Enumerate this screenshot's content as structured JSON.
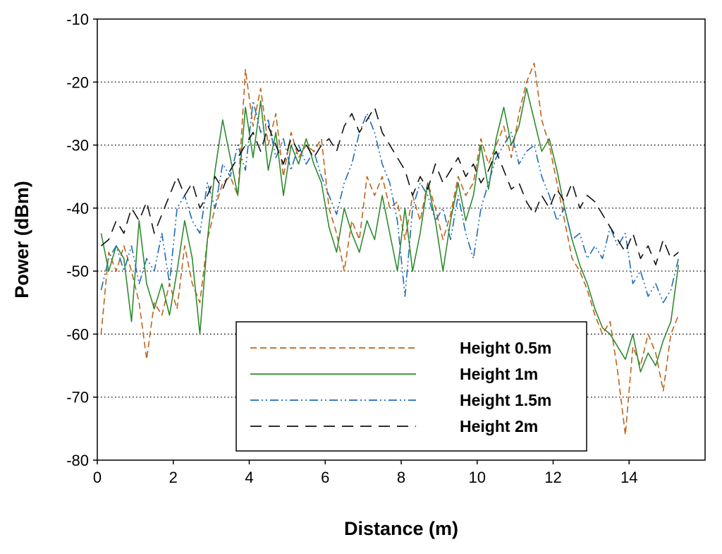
{
  "chart_data": {
    "type": "line",
    "title": "",
    "xlabel": "Distance (m)",
    "ylabel": "Power (dBm)",
    "xlim": [
      0,
      16
    ],
    "ylim": [
      -80,
      -10
    ],
    "xticks": [
      0,
      2,
      4,
      6,
      8,
      10,
      12,
      14
    ],
    "yticks": [
      -80,
      -70,
      -60,
      -50,
      -40,
      -30,
      -20,
      -10
    ],
    "grid": "horizontal-dotted",
    "legend_position": "bottom-center",
    "series": [
      {
        "name": "Height 0.5m",
        "color": "#c0631a",
        "style": "dashed",
        "x": [
          0.1,
          0.3,
          0.5,
          0.7,
          0.9,
          1.1,
          1.3,
          1.5,
          1.7,
          1.9,
          2.1,
          2.3,
          2.5,
          2.7,
          2.9,
          3.1,
          3.3,
          3.5,
          3.7,
          3.9,
          4.1,
          4.3,
          4.5,
          4.7,
          4.9,
          5.1,
          5.3,
          5.5,
          5.7,
          5.9,
          6.1,
          6.3,
          6.5,
          6.7,
          6.9,
          7.1,
          7.3,
          7.5,
          7.7,
          7.9,
          8.1,
          8.3,
          8.5,
          8.7,
          8.9,
          9.1,
          9.3,
          9.5,
          9.7,
          9.9,
          10.1,
          10.3,
          10.5,
          10.7,
          10.9,
          11.1,
          11.3,
          11.5,
          11.7,
          11.9,
          12.1,
          12.3,
          12.5,
          12.7,
          12.9,
          13.1,
          13.3,
          13.5,
          13.7,
          13.9,
          14.1,
          14.3,
          14.5,
          14.7,
          14.9,
          15.1,
          15.3
        ],
        "values": [
          -60,
          -47,
          -50,
          -46,
          -50,
          -55,
          -64,
          -55,
          -57,
          -52,
          -56,
          -46,
          -52,
          -55,
          -45,
          -40,
          -36,
          -35,
          -38,
          -18,
          -27,
          -21,
          -30,
          -25,
          -35,
          -28,
          -32,
          -30,
          -31,
          -29,
          -40,
          -44,
          -50,
          -42,
          -45,
          -35,
          -38,
          -35,
          -40,
          -39,
          -45,
          -38,
          -42,
          -36,
          -40,
          -45,
          -41,
          -35,
          -38,
          -36,
          -29,
          -33,
          -30,
          -27,
          -32,
          -25,
          -20,
          -17,
          -26,
          -30,
          -36,
          -42,
          -48,
          -50,
          -53,
          -57,
          -60,
          -58,
          -66,
          -76,
          -62,
          -65,
          -60,
          -63,
          -69,
          -60,
          -57
        ]
      },
      {
        "name": "Height 1m",
        "color": "#2e8b2e",
        "style": "solid",
        "x": [
          0.1,
          0.3,
          0.5,
          0.7,
          0.9,
          1.1,
          1.3,
          1.5,
          1.7,
          1.9,
          2.1,
          2.3,
          2.5,
          2.7,
          2.9,
          3.1,
          3.3,
          3.5,
          3.7,
          3.9,
          4.1,
          4.3,
          4.5,
          4.7,
          4.9,
          5.1,
          5.3,
          5.5,
          5.7,
          5.9,
          6.1,
          6.3,
          6.5,
          6.7,
          6.9,
          7.1,
          7.3,
          7.5,
          7.7,
          7.9,
          8.1,
          8.3,
          8.5,
          8.7,
          8.9,
          9.1,
          9.3,
          9.5,
          9.7,
          9.9,
          10.1,
          10.3,
          10.5,
          10.7,
          10.9,
          11.1,
          11.3,
          11.5,
          11.7,
          11.9,
          12.1,
          12.3,
          12.5,
          12.7,
          12.9,
          13.1,
          13.3,
          13.5,
          13.7,
          13.9,
          14.1,
          14.3,
          14.5,
          14.7,
          14.9,
          15.1,
          15.3
        ],
        "values": [
          -44,
          -50,
          -46,
          -48,
          -58,
          -42,
          -52,
          -56,
          -52,
          -57,
          -50,
          -42,
          -48,
          -60,
          -45,
          -34,
          -26,
          -32,
          -38,
          -24,
          -32,
          -23,
          -34,
          -28,
          -38,
          -30,
          -33,
          -29,
          -33,
          -36,
          -43,
          -47,
          -40,
          -44,
          -47,
          -42,
          -45,
          -38,
          -44,
          -50,
          -40,
          -50,
          -44,
          -36,
          -42,
          -50,
          -42,
          -36,
          -42,
          -38,
          -30,
          -37,
          -29,
          -24,
          -30,
          -27,
          -21,
          -26,
          -31,
          -29,
          -34,
          -40,
          -45,
          -49,
          -52,
          -56,
          -59,
          -60,
          -62,
          -64,
          -60,
          -66,
          -63,
          -65,
          -61,
          -58,
          -49
        ]
      },
      {
        "name": "Height 1.5m",
        "color": "#1e6bb8",
        "style": "dash-dot-dot",
        "x": [
          0.1,
          0.3,
          0.5,
          0.7,
          0.9,
          1.1,
          1.3,
          1.5,
          1.7,
          1.9,
          2.1,
          2.3,
          2.5,
          2.7,
          2.9,
          3.1,
          3.3,
          3.5,
          3.7,
          3.9,
          4.1,
          4.3,
          4.5,
          4.7,
          4.9,
          5.1,
          5.3,
          5.5,
          5.7,
          5.9,
          6.1,
          6.3,
          6.5,
          6.7,
          6.9,
          7.1,
          7.3,
          7.5,
          7.7,
          7.9,
          8.1,
          8.3,
          8.5,
          8.7,
          8.9,
          9.1,
          9.3,
          9.5,
          9.7,
          9.9,
          10.1,
          10.3,
          10.5,
          10.7,
          10.9,
          11.1,
          11.3,
          11.5,
          11.7,
          11.9,
          12.1,
          12.3,
          12.5,
          12.7,
          12.9,
          13.1,
          13.3,
          13.5,
          13.7,
          13.9,
          14.1,
          14.3,
          14.5,
          14.7,
          14.9,
          15.1,
          15.3
        ],
        "values": [
          -53,
          -48,
          -46,
          -50,
          -46,
          -52,
          -48,
          -50,
          -44,
          -52,
          -40,
          -38,
          -42,
          -44,
          -36,
          -40,
          -33,
          -35,
          -30,
          -34,
          -23,
          -28,
          -26,
          -32,
          -29,
          -34,
          -30,
          -33,
          -31,
          -35,
          -38,
          -41,
          -36,
          -33,
          -28,
          -25,
          -28,
          -33,
          -36,
          -42,
          -54,
          -40,
          -36,
          -38,
          -42,
          -40,
          -45,
          -38,
          -44,
          -48,
          -40,
          -36,
          -32,
          -30,
          -28,
          -33,
          -31,
          -30,
          -35,
          -38,
          -42,
          -40,
          -45,
          -44,
          -48,
          -46,
          -48,
          -43,
          -46,
          -44,
          -52,
          -50,
          -54,
          -52,
          -55,
          -53,
          -48
        ]
      },
      {
        "name": "Height 2m",
        "color": "#111111",
        "style": "long-dash",
        "x": [
          0.1,
          0.3,
          0.5,
          0.7,
          0.9,
          1.1,
          1.3,
          1.5,
          1.7,
          1.9,
          2.1,
          2.3,
          2.5,
          2.7,
          2.9,
          3.1,
          3.3,
          3.5,
          3.7,
          3.9,
          4.1,
          4.3,
          4.5,
          4.7,
          4.9,
          5.1,
          5.3,
          5.5,
          5.7,
          5.9,
          6.1,
          6.3,
          6.5,
          6.7,
          6.9,
          7.1,
          7.3,
          7.5,
          7.7,
          7.9,
          8.1,
          8.3,
          8.5,
          8.7,
          8.9,
          9.1,
          9.3,
          9.5,
          9.7,
          9.9,
          10.1,
          10.3,
          10.5,
          10.7,
          10.9,
          11.1,
          11.3,
          11.5,
          11.7,
          11.9,
          12.1,
          12.3,
          12.5,
          12.7,
          12.9,
          13.1,
          13.3,
          13.5,
          13.7,
          13.9,
          14.1,
          14.3,
          14.5,
          14.7,
          14.9,
          15.1,
          15.3
        ],
        "values": [
          -46,
          -45,
          -42,
          -44,
          -40,
          -42,
          -39,
          -44,
          -41,
          -38,
          -35,
          -38,
          -36,
          -40,
          -38,
          -35,
          -37,
          -34,
          -32,
          -30,
          -28,
          -31,
          -27,
          -30,
          -33,
          -29,
          -31,
          -30,
          -32,
          -30,
          -29,
          -31,
          -27,
          -25,
          -28,
          -26,
          -24,
          -28,
          -30,
          -32,
          -34,
          -38,
          -35,
          -37,
          -33,
          -36,
          -34,
          -32,
          -35,
          -33,
          -36,
          -34,
          -31,
          -34,
          -37,
          -36,
          -39,
          -41,
          -38,
          -40,
          -37,
          -39,
          -36,
          -40,
          -38,
          -39,
          -41,
          -43,
          -45,
          -47,
          -44,
          -48,
          -46,
          -49,
          -45,
          -48,
          -47
        ]
      }
    ]
  }
}
